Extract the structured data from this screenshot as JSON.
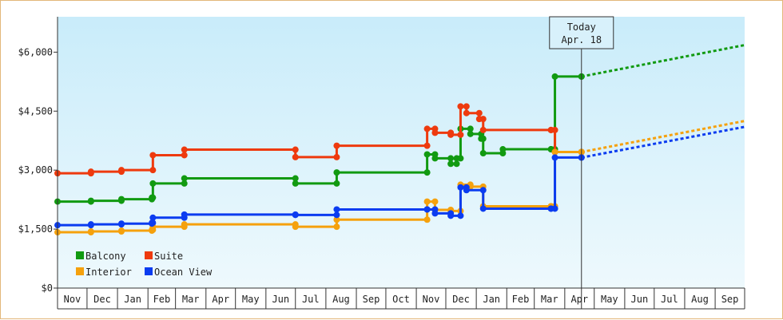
{
  "chart_data": {
    "type": "line",
    "step": true,
    "title": "",
    "xlabel": "",
    "ylabel": "",
    "ylim": [
      0,
      6900
    ],
    "yticks": [
      0,
      1500,
      3000,
      4500,
      6000
    ],
    "ytick_labels": [
      "$0",
      "$1,500",
      "$3,000",
      "$4,500",
      "$6,000"
    ],
    "xlim": [
      "2016-11-01",
      "2018-10-01"
    ],
    "month_labels": [
      "Nov",
      "Dec",
      "Jan",
      "Feb",
      "Mar",
      "Apr",
      "May",
      "Jun",
      "Jul",
      "Aug",
      "Sep",
      "Oct",
      "Nov",
      "Dec",
      "Jan",
      "Feb",
      "Mar",
      "Apr",
      "May",
      "Jun",
      "Jul",
      "Aug",
      "Sep"
    ],
    "today": {
      "line1": "Today",
      "line2": "Apr. 18",
      "date": "2018-04-18"
    },
    "legend": {
      "placement": "bottom-left"
    },
    "background_gradient": [
      "#c9ecfa",
      "#eef9fd"
    ],
    "series": [
      {
        "name": "Balcony",
        "color": "#119a11",
        "points": [
          [
            "2016-11-01",
            2200
          ],
          [
            "2016-12-05",
            2220
          ],
          [
            "2017-01-05",
            2260
          ],
          [
            "2017-02-05",
            2300
          ],
          [
            "2017-02-06",
            2660
          ],
          [
            "2017-03-10",
            2790
          ],
          [
            "2017-07-01",
            2660
          ],
          [
            "2017-08-12",
            2940
          ],
          [
            "2017-11-12",
            3400
          ],
          [
            "2017-11-20",
            3300
          ],
          [
            "2017-12-06",
            3160
          ],
          [
            "2017-12-12",
            3300
          ],
          [
            "2017-12-16",
            4050
          ],
          [
            "2017-12-26",
            3920
          ],
          [
            "2018-01-06",
            3800
          ],
          [
            "2018-01-08",
            3430
          ],
          [
            "2018-01-28",
            3530
          ],
          [
            "2018-03-18",
            3530
          ],
          [
            "2018-03-22",
            5380
          ],
          [
            "2018-04-18",
            5380
          ]
        ],
        "projection": [
          [
            "2018-04-18",
            5380
          ],
          [
            "2018-10-01",
            6180
          ]
        ]
      },
      {
        "name": "Suite",
        "color": "#ee3a0e",
        "points": [
          [
            "2016-11-01",
            2920
          ],
          [
            "2016-12-05",
            2960
          ],
          [
            "2017-01-05",
            3000
          ],
          [
            "2017-02-06",
            3380
          ],
          [
            "2017-03-10",
            3520
          ],
          [
            "2017-07-01",
            3330
          ],
          [
            "2017-08-12",
            3620
          ],
          [
            "2017-11-12",
            4050
          ],
          [
            "2017-11-20",
            3950
          ],
          [
            "2017-12-06",
            3900
          ],
          [
            "2017-12-16",
            4620
          ],
          [
            "2017-12-22",
            4450
          ],
          [
            "2018-01-04",
            4300
          ],
          [
            "2018-01-08",
            4020
          ],
          [
            "2018-03-18",
            4020
          ],
          [
            "2018-03-22",
            3460
          ],
          [
            "2018-04-18",
            3460
          ]
        ],
        "projection": []
      },
      {
        "name": "Interior",
        "color": "#f5a10d",
        "points": [
          [
            "2016-11-01",
            1420
          ],
          [
            "2016-12-05",
            1440
          ],
          [
            "2017-01-05",
            1460
          ],
          [
            "2017-02-05",
            1480
          ],
          [
            "2017-02-06",
            1560
          ],
          [
            "2017-03-10",
            1620
          ],
          [
            "2017-07-01",
            1560
          ],
          [
            "2017-08-12",
            1740
          ],
          [
            "2017-11-12",
            2200
          ],
          [
            "2017-11-20",
            1990
          ],
          [
            "2017-12-06",
            1960
          ],
          [
            "2017-12-16",
            2630
          ],
          [
            "2017-12-26",
            2580
          ],
          [
            "2018-01-08",
            2080
          ],
          [
            "2018-03-18",
            2080
          ],
          [
            "2018-03-22",
            3460
          ],
          [
            "2018-04-18",
            3460
          ]
        ],
        "projection": [
          [
            "2018-04-18",
            3460
          ],
          [
            "2018-10-01",
            4250
          ]
        ]
      },
      {
        "name": "Ocean View",
        "color": "#0b3cf0",
        "points": [
          [
            "2016-11-01",
            1600
          ],
          [
            "2016-12-05",
            1620
          ],
          [
            "2017-01-05",
            1640
          ],
          [
            "2017-02-05",
            1660
          ],
          [
            "2017-02-06",
            1790
          ],
          [
            "2017-03-10",
            1870
          ],
          [
            "2017-07-01",
            1860
          ],
          [
            "2017-08-12",
            2000
          ],
          [
            "2017-11-12",
            2000
          ],
          [
            "2017-11-20",
            1900
          ],
          [
            "2017-12-06",
            1840
          ],
          [
            "2017-12-16",
            2560
          ],
          [
            "2017-12-22",
            2490
          ],
          [
            "2018-01-08",
            2020
          ],
          [
            "2018-03-18",
            2020
          ],
          [
            "2018-03-22",
            3320
          ],
          [
            "2018-04-18",
            3320
          ]
        ],
        "projection": [
          [
            "2018-04-18",
            3320
          ],
          [
            "2018-10-01",
            4100
          ]
        ]
      }
    ]
  }
}
